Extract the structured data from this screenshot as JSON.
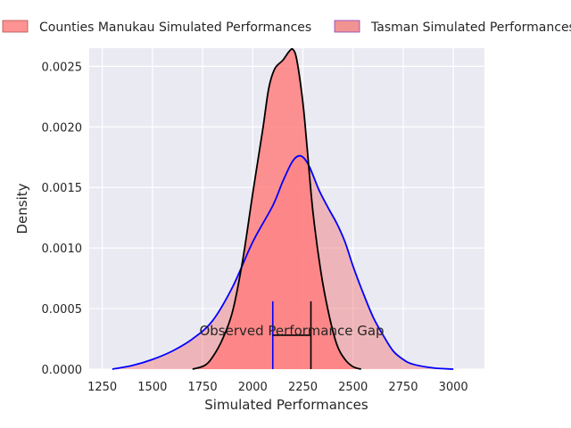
{
  "chart_data": {
    "type": "area",
    "title": "",
    "xlabel": "Simulated Performances",
    "ylabel": "Density",
    "xlim": [
      1185,
      3155
    ],
    "ylim": [
      0,
      0.00265
    ],
    "x_ticks": [
      1250,
      1500,
      1750,
      2000,
      2250,
      2500,
      2750,
      3000
    ],
    "y_ticks": [
      0.0,
      0.0005,
      0.001,
      0.0015,
      0.002,
      0.0025
    ],
    "x_tick_labels": [
      "1250",
      "1500",
      "1750",
      "2000",
      "2250",
      "2500",
      "2750",
      "3000"
    ],
    "y_tick_labels": [
      "0.0000",
      "0.0005",
      "0.0010",
      "0.0015",
      "0.0020",
      "0.0025"
    ],
    "grid": true,
    "background": "#eaeaf2",
    "legend_placement": "top",
    "series": [
      {
        "name": "Counties Manukau Simulated Performances",
        "fill": "#ff7f7f",
        "fill_opacity": 0.85,
        "line": "#000000",
        "points": [
          [
            1700,
            0
          ],
          [
            1760,
            3e-05
          ],
          [
            1800,
            0.0001
          ],
          [
            1850,
            0.00025
          ],
          [
            1900,
            0.00048
          ],
          [
            1950,
            0.0009
          ],
          [
            2000,
            0.00145
          ],
          [
            2050,
            0.00198
          ],
          [
            2080,
            0.00232
          ],
          [
            2110,
            0.00248
          ],
          [
            2150,
            0.00255
          ],
          [
            2180,
            0.00262
          ],
          [
            2200,
            0.00264
          ],
          [
            2220,
            0.00255
          ],
          [
            2250,
            0.0022
          ],
          [
            2270,
            0.00185
          ],
          [
            2300,
            0.0013
          ],
          [
            2340,
            0.0008
          ],
          [
            2380,
            0.00045
          ],
          [
            2420,
            0.0002
          ],
          [
            2460,
            8e-05
          ],
          [
            2500,
            2e-05
          ],
          [
            2540,
            0
          ]
        ]
      },
      {
        "name": "Tasman Simulated Performances",
        "fill": "#f08080",
        "fill_opacity": 0.5,
        "line": "#0000ff",
        "points": [
          [
            1300,
            0
          ],
          [
            1400,
            3e-05
          ],
          [
            1500,
            8e-05
          ],
          [
            1600,
            0.00015
          ],
          [
            1700,
            0.00025
          ],
          [
            1800,
            0.0004
          ],
          [
            1900,
            0.00068
          ],
          [
            2000,
            0.00105
          ],
          [
            2100,
            0.00135
          ],
          [
            2150,
            0.00155
          ],
          [
            2200,
            0.00172
          ],
          [
            2240,
            0.00176
          ],
          [
            2280,
            0.00168
          ],
          [
            2330,
            0.00148
          ],
          [
            2380,
            0.00132
          ],
          [
            2420,
            0.0012
          ],
          [
            2460,
            0.00105
          ],
          [
            2500,
            0.00085
          ],
          [
            2550,
            0.00063
          ],
          [
            2600,
            0.00043
          ],
          [
            2650,
            0.00028
          ],
          [
            2700,
            0.00015
          ],
          [
            2750,
            8e-05
          ],
          [
            2800,
            4e-05
          ],
          [
            2900,
            1e-05
          ],
          [
            3000,
            0
          ]
        ]
      }
    ],
    "markers": [
      {
        "name": "Tasman observed",
        "x": 2100,
        "y_top": 0.00056,
        "color": "#0000ff"
      },
      {
        "name": "Counties Manukau observed",
        "x": 2290,
        "y_top": 0.00056,
        "color": "#000000"
      }
    ],
    "gap_bracket": {
      "x_start": 2100,
      "x_end": 2290,
      "y": 0.00028,
      "color": "#000000"
    },
    "annotation": {
      "text": "Observed Performance Gap",
      "x": 2200,
      "y": 0.00032
    }
  }
}
